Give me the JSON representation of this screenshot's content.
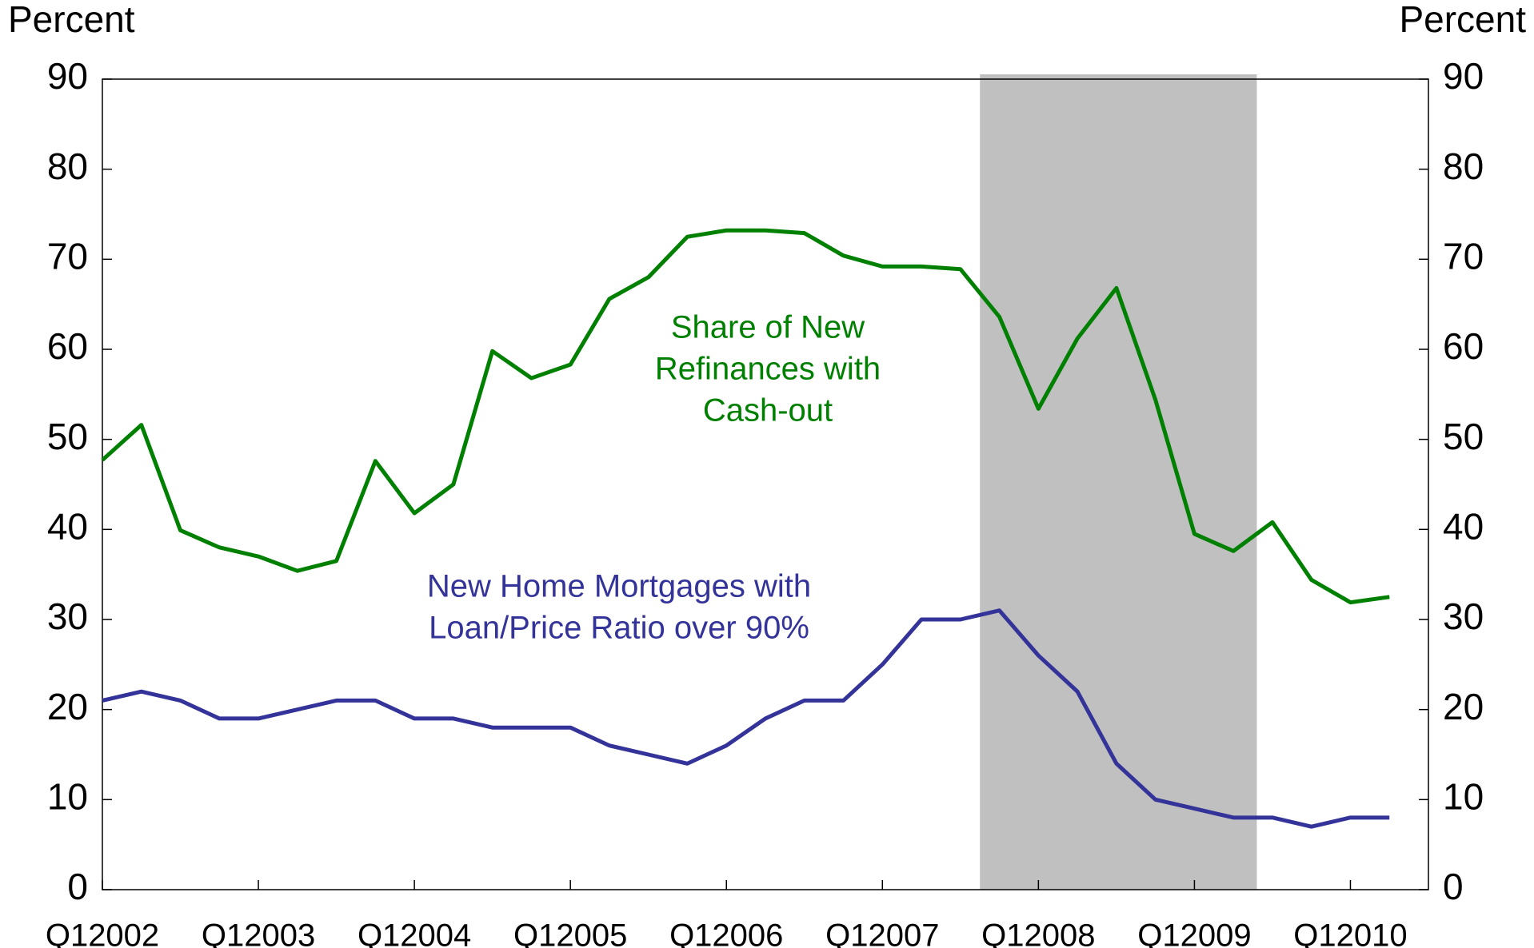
{
  "chart_data": {
    "type": "line",
    "y_label": "Percent",
    "y2_label": "Percent",
    "categories": [
      "Q12002",
      null,
      null,
      null,
      "Q12003",
      null,
      null,
      null,
      "Q12004",
      null,
      null,
      null,
      "Q12005",
      null,
      null,
      null,
      "Q12006",
      null,
      null,
      null,
      "Q12007",
      null,
      null,
      null,
      "Q12008",
      null,
      null,
      null,
      "Q12009",
      null,
      null,
      null,
      "Q12010",
      null
    ],
    "series": [
      {
        "name": "Share of New Refinances with Cash-out",
        "label_lines": [
          "Share of New",
          "Refinances with",
          "Cash-out"
        ],
        "color": "#008000",
        "values": [
          47.7,
          51.6,
          39.9,
          38,
          37,
          35.4,
          36.5,
          47.6,
          41.8,
          45,
          59.8,
          56.8,
          58.3,
          65.6,
          68,
          72.5,
          73.2,
          73.2,
          72.9,
          70.4,
          69.2,
          69.2,
          68.9,
          63.6,
          53.4,
          61.2,
          66.8,
          54.4,
          39.5,
          37.6,
          40.8,
          34.4,
          31.9,
          32.5
        ]
      },
      {
        "name": "New Home Mortgages with Loan/Price Ratio over 90%",
        "label_lines": [
          "New Home Mortgages with",
          "Loan/Price Ratio over 90%"
        ],
        "color": "#333399",
        "values": [
          21,
          22,
          21,
          19,
          19,
          20,
          21,
          21,
          19,
          19,
          18,
          18,
          18,
          16,
          15,
          14,
          16,
          19,
          21,
          21,
          25,
          30,
          30,
          31,
          26,
          22,
          14,
          10,
          9,
          8,
          8,
          7,
          8,
          8
        ]
      }
    ],
    "shaded_x": [
      22.5,
      29.6
    ],
    "shade_color": "#c0c0c0",
    "ylim": [
      0,
      90
    ],
    "yticks": [
      0,
      10,
      20,
      30,
      40,
      50,
      60,
      70,
      80,
      90
    ],
    "y2lim": [
      0,
      90
    ],
    "y2ticks": [
      0,
      10,
      20,
      30,
      40,
      50,
      60,
      70,
      80,
      90
    ]
  }
}
